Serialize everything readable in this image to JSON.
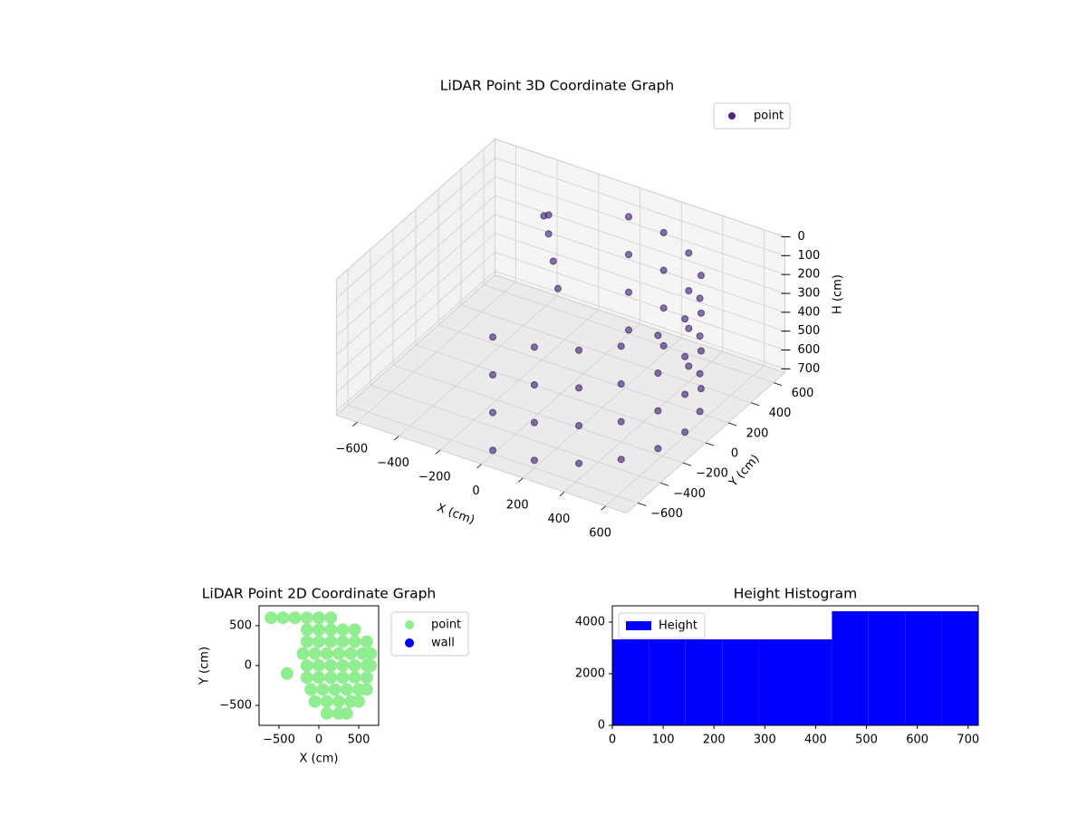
{
  "chart_data": [
    {
      "type": "scatter3d",
      "title": "LiDAR Point 3D Coordinate Graph",
      "xlabel": "X (cm)",
      "ylabel": "Y (cm)",
      "zlabel": "H (cm)",
      "xlim": [
        -700,
        700
      ],
      "ylim": [
        -700,
        700
      ],
      "zlim": [
        0,
        720
      ],
      "xticks": [
        {
          "value": -600,
          "label": "−600"
        },
        {
          "value": -400,
          "label": "−400"
        },
        {
          "value": -200,
          "label": "−200"
        },
        0,
        200,
        400,
        600
      ],
      "yticks": [
        {
          "value": -600,
          "label": "−600"
        },
        {
          "value": -400,
          "label": "−400"
        },
        {
          "value": -200,
          "label": "−200"
        },
        0,
        200,
        400,
        600
      ],
      "zticks": [
        0,
        100,
        200,
        300,
        400,
        500,
        600,
        700
      ],
      "zinverted": true,
      "grid": true,
      "legend": "upper right",
      "series": [
        {
          "name": "point",
          "color": "#482878",
          "x": [
            0,
            0,
            0,
            0,
            185,
            185,
            185,
            185,
            353,
            353,
            353,
            353,
            485,
            485,
            485,
            485,
            571,
            571,
            571,
            571,
            600,
            600,
            600,
            600,
            571,
            571,
            571,
            571,
            485,
            485,
            485,
            485,
            353,
            353,
            353,
            353,
            185,
            185,
            185,
            185,
            0,
            0,
            0,
            0,
            -250,
            -250,
            -200,
            -150,
            -300
          ],
          "y": [
            -600,
            -600,
            -600,
            -600,
            -571,
            -571,
            -571,
            -571,
            -485,
            -485,
            -485,
            -485,
            -353,
            -353,
            -353,
            -353,
            -185,
            -185,
            -185,
            -185,
            0,
            0,
            0,
            0,
            185,
            185,
            185,
            185,
            353,
            353,
            353,
            353,
            485,
            485,
            485,
            485,
            571,
            571,
            571,
            571,
            600,
            600,
            600,
            600,
            350,
            350,
            300,
            250,
            400
          ],
          "z": [
            100,
            300,
            500,
            700,
            100,
            300,
            500,
            700,
            100,
            300,
            500,
            700,
            100,
            300,
            500,
            700,
            100,
            300,
            500,
            700,
            100,
            300,
            500,
            700,
            100,
            300,
            500,
            700,
            100,
            300,
            500,
            700,
            100,
            300,
            500,
            700,
            100,
            300,
            500,
            700,
            100,
            300,
            500,
            700,
            50,
            150,
            250,
            350,
            100
          ]
        }
      ]
    },
    {
      "type": "scatter",
      "title": "LiDAR Point 2D Coordinate Graph",
      "xlabel": "X (cm)",
      "ylabel": "Y (cm)",
      "xlim": [
        -750,
        750
      ],
      "ylim": [
        -750,
        750
      ],
      "xticks": [
        {
          "value": -500,
          "label": "−500"
        },
        0,
        500
      ],
      "yticks": [
        {
          "value": -500,
          "label": "−500"
        },
        0,
        500
      ],
      "legend": "outside upper right",
      "series": [
        {
          "name": "point",
          "color": "#90ee90",
          "x": [
            -600,
            -450,
            -300,
            -150,
            0,
            150,
            -150,
            0,
            150,
            300,
            450,
            -150,
            0,
            150,
            300,
            450,
            600,
            -200,
            -50,
            100,
            250,
            400,
            550,
            650,
            -150,
            0,
            150,
            300,
            450,
            600,
            650,
            -400,
            -150,
            0,
            150,
            300,
            450,
            600,
            -100,
            50,
            200,
            350,
            500,
            600,
            -50,
            100,
            250,
            400,
            500,
            100,
            250,
            350
          ],
          "y": [
            600,
            600,
            600,
            600,
            600,
            600,
            450,
            450,
            450,
            450,
            450,
            300,
            300,
            300,
            300,
            300,
            300,
            150,
            150,
            150,
            150,
            150,
            150,
            150,
            0,
            0,
            0,
            0,
            0,
            0,
            0,
            -100,
            -150,
            -150,
            -150,
            -150,
            -150,
            -150,
            -300,
            -300,
            -300,
            -300,
            -300,
            -300,
            -450,
            -450,
            -450,
            -450,
            -450,
            -600,
            -600,
            -600
          ]
        },
        {
          "name": "wall",
          "color": "#0000ff",
          "x": [],
          "y": []
        }
      ]
    },
    {
      "type": "histogram",
      "title": "Height Histogram",
      "bins": [
        0,
        72,
        144,
        216,
        288,
        360,
        432,
        504,
        576,
        648,
        720
      ],
      "values": [
        3330,
        3330,
        3330,
        3330,
        3330,
        3330,
        4420,
        4420,
        4420,
        4420
      ],
      "xlim": [
        0,
        720
      ],
      "ylim": [
        0,
        4630
      ],
      "xticks": [
        0,
        100,
        200,
        300,
        400,
        500,
        600,
        700
      ],
      "yticks": [
        0,
        2000,
        4000
      ],
      "legend": "upper left",
      "series_name": "Height",
      "color": "#0000ff"
    }
  ]
}
